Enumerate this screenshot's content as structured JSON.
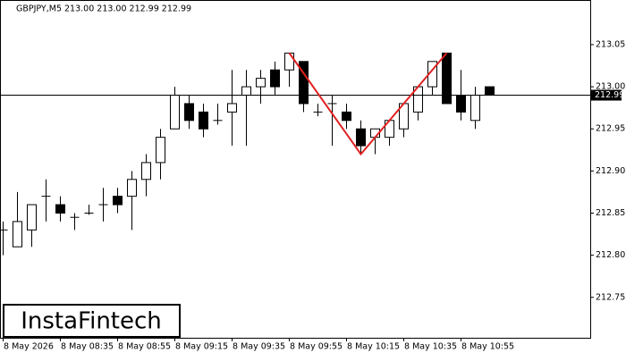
{
  "chart_data": {
    "type": "candlestick",
    "title": "GBPJPY,M5  213.00 213.00 212.99 212.99",
    "watermark": "InstaFintech",
    "categories": [
      "8 May 2026",
      null,
      null,
      null,
      "8 May 08:35",
      null,
      null,
      null,
      "8 May 08:55",
      null,
      null,
      null,
      "8 May 09:15",
      null,
      null,
      null,
      "8 May 09:35",
      null,
      null,
      null,
      "8 May 09:55",
      null,
      null,
      null,
      "8 May 10:15",
      null,
      null,
      null,
      "8 May 10:35",
      null,
      null,
      null,
      "8 May 10:55",
      null,
      null
    ],
    "open": [
      212.83,
      212.81,
      212.83,
      212.87,
      212.86,
      212.845,
      212.85,
      212.86,
      212.87,
      212.87,
      212.89,
      212.91,
      212.95,
      212.98,
      212.97,
      212.96,
      212.97,
      212.99,
      213.0,
      213.02,
      213.02,
      213.03,
      212.97,
      212.98,
      212.97,
      212.95,
      212.94,
      212.94,
      212.95,
      212.97,
      213.0,
      213.04,
      212.99,
      212.96,
      213.0
    ],
    "high": [
      212.84,
      212.875,
      212.86,
      212.89,
      212.87,
      212.85,
      212.86,
      212.88,
      212.88,
      212.9,
      212.92,
      212.95,
      213.0,
      212.99,
      212.98,
      212.98,
      213.02,
      213.02,
      213.02,
      213.03,
      213.04,
      213.03,
      212.98,
      212.99,
      212.98,
      212.96,
      212.95,
      212.96,
      212.98,
      213.0,
      213.03,
      213.04,
      213.02,
      213.0,
      213.0
    ],
    "low": [
      212.8,
      212.81,
      212.81,
      212.84,
      212.84,
      212.83,
      212.848,
      212.84,
      212.85,
      212.83,
      212.87,
      212.89,
      212.95,
      212.95,
      212.94,
      212.955,
      212.93,
      212.93,
      212.98,
      212.99,
      213.0,
      212.97,
      212.965,
      212.93,
      212.95,
      212.92,
      212.92,
      212.93,
      212.94,
      212.96,
      212.99,
      212.98,
      212.96,
      212.95,
      212.99
    ],
    "close": [
      212.83,
      212.84,
      212.86,
      212.87,
      212.85,
      212.845,
      212.85,
      212.86,
      212.86,
      212.89,
      212.91,
      212.94,
      212.99,
      212.96,
      212.95,
      212.96,
      212.98,
      213.0,
      213.01,
      213.0,
      213.04,
      212.98,
      212.97,
      212.98,
      212.96,
      212.93,
      212.95,
      212.96,
      212.98,
      213.0,
      213.03,
      212.98,
      212.97,
      212.99,
      212.99
    ],
    "ylim": [
      212.702,
      213.103
    ],
    "yticks": [
      212.75,
      {
        "value": 212.8,
        "label": "212.80"
      },
      212.85,
      {
        "value": 212.9,
        "label": "212.90"
      },
      212.95,
      {
        "value": 213.0,
        "label": "213.00"
      },
      213.05
    ],
    "current_price": {
      "value": 212.99,
      "label": "212.99"
    },
    "pattern": {
      "color": "#e02020",
      "points": [
        {
          "index": 20,
          "value": 213.04
        },
        {
          "index": 25,
          "value": 212.92
        },
        {
          "index": 31,
          "value": 213.04
        }
      ]
    }
  }
}
